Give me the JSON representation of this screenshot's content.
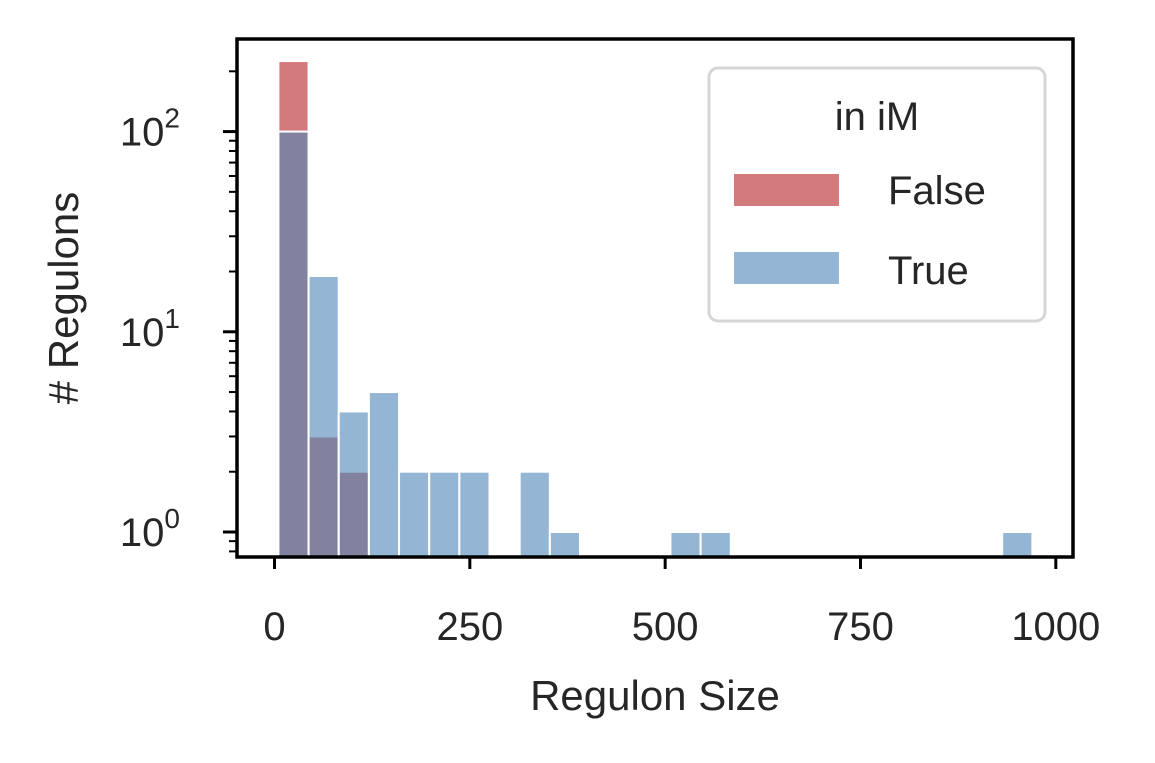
{
  "chart_data": {
    "type": "bar",
    "xlabel": "Regulon Size",
    "ylabel": "# Regulons",
    "yscale": "log",
    "xlim": [
      -48,
      1022
    ],
    "ylim": [
      0.75,
      290
    ],
    "grid": false,
    "bin_edges": [
      5,
      43.6,
      82.2,
      120.8,
      159.4,
      198.0,
      236.6,
      275.2,
      313.8,
      352.4,
      391.0,
      429.6,
      468.2,
      506.8,
      545.4,
      584.0,
      622.6,
      661.2,
      699.8,
      738.4,
      777.0,
      815.6,
      854.2,
      892.8,
      931.4,
      970.0
    ],
    "x_ticks": [
      {
        "value": 0,
        "label": "0"
      },
      {
        "value": 250,
        "label": "250"
      },
      {
        "value": 500,
        "label": "500"
      },
      {
        "value": 750,
        "label": "750"
      },
      {
        "value": 1000,
        "label": "1000"
      }
    ],
    "y_ticks": [
      {
        "value": 1,
        "base": "10",
        "exp": "0"
      },
      {
        "value": 10,
        "base": "10",
        "exp": "1"
      },
      {
        "value": 100,
        "base": "10",
        "exp": "2"
      }
    ],
    "series": [
      {
        "name": "False",
        "color": "#c44e52",
        "opacity": 0.75,
        "counts": [
          225,
          3,
          2,
          0,
          0,
          0,
          0,
          0,
          0,
          0,
          0,
          0,
          0,
          0,
          0,
          0,
          0,
          0,
          0,
          0,
          0,
          0,
          0,
          0,
          0
        ]
      },
      {
        "name": "True",
        "color": "#4c86b8",
        "opacity": 0.6,
        "counts": [
          100,
          19,
          4,
          5,
          2,
          2,
          2,
          0,
          2,
          1,
          0,
          0,
          0,
          1,
          1,
          0,
          0,
          0,
          0,
          0,
          0,
          0,
          0,
          0,
          1
        ]
      }
    ],
    "legend": {
      "title": "in iM",
      "position": "top-right"
    }
  }
}
